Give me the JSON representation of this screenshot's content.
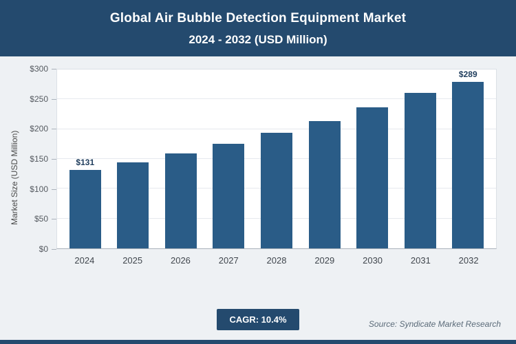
{
  "header": {
    "title": "Global Air Bubble Detection Equipment Market",
    "subtitle": "2024 - 2032 (USD Million)"
  },
  "chart_data": {
    "type": "bar",
    "title": "Global Air Bubble Detection Equipment Market 2024 - 2032 (USD Million)",
    "categories": [
      "2024",
      "2025",
      "2026",
      "2027",
      "2028",
      "2029",
      "2030",
      "2031",
      "2032"
    ],
    "values": [
      131,
      144,
      159,
      175,
      194,
      214,
      236,
      261,
      289
    ],
    "point_labels": [
      "$131",
      null,
      null,
      null,
      null,
      null,
      null,
      null,
      "$289"
    ],
    "xlabel": "",
    "ylabel": "Market Size (USD Million)",
    "ylim": [
      0,
      300
    ],
    "yticks": [
      0,
      50,
      100,
      150,
      200,
      250,
      300
    ],
    "ytick_labels": [
      "$0",
      "$50",
      "$100",
      "$150",
      "$200",
      "$250",
      "$300"
    ],
    "grid": true,
    "legend": false,
    "bar_color": "#2a5c87"
  },
  "footer": {
    "cagr_label": "CAGR: 10.4%",
    "source": "Source: Syndicate Market Research"
  },
  "colors": {
    "header_bg": "#244a6e",
    "bar": "#2a5c87",
    "page_bg": "#eef1f4"
  }
}
